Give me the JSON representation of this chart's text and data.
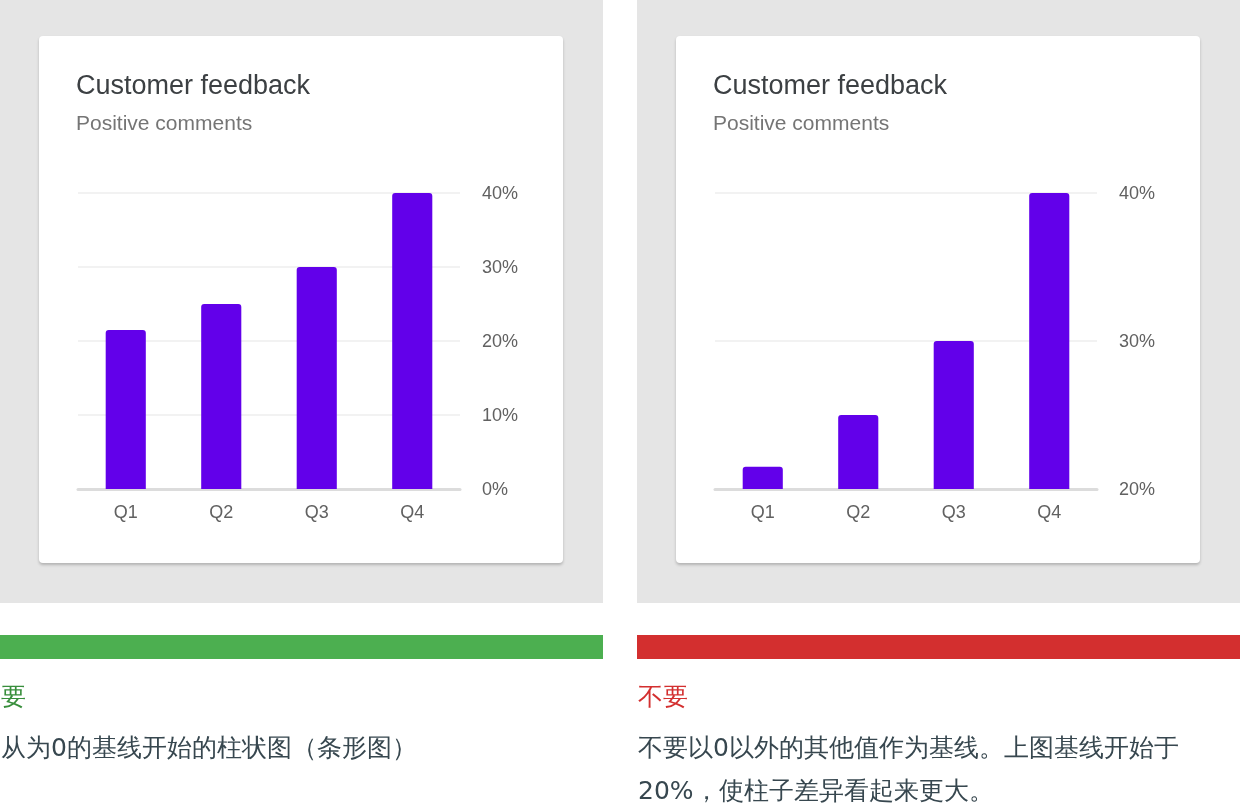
{
  "chart_data": [
    {
      "type": "bar",
      "title": "Customer feedback",
      "subtitle": "Positive comments",
      "categories": [
        "Q1",
        "Q2",
        "Q3",
        "Q4"
      ],
      "values": [
        21.5,
        25,
        30,
        40
      ],
      "color": "#6200ea",
      "ylim": [
        0,
        40
      ],
      "yticks": [
        {
          "value": 0,
          "label": "0%"
        },
        {
          "value": 10,
          "label": "10%"
        },
        {
          "value": 20,
          "label": "20%"
        },
        {
          "value": 30,
          "label": "30%"
        },
        {
          "value": 40,
          "label": "40%"
        }
      ],
      "grid": "y",
      "annotations": [
        "要",
        "从为0的基线开始的柱状图（条形图）"
      ]
    },
    {
      "type": "bar",
      "title": "Customer feedback",
      "subtitle": "Positive comments",
      "categories": [
        "Q1",
        "Q2",
        "Q3",
        "Q4"
      ],
      "values": [
        21.5,
        25,
        30,
        40
      ],
      "color": "#6200ea",
      "ylim": [
        20,
        40
      ],
      "yticks": [
        {
          "value": 20,
          "label": "20%"
        },
        {
          "value": 30,
          "label": "30%"
        },
        {
          "value": 40,
          "label": "40%"
        }
      ],
      "grid": "y",
      "annotations": [
        "不要",
        "不要以0以外的其他值作为基线。上图基线开始于20%，使柱子差异看起来更大。"
      ]
    }
  ]
}
